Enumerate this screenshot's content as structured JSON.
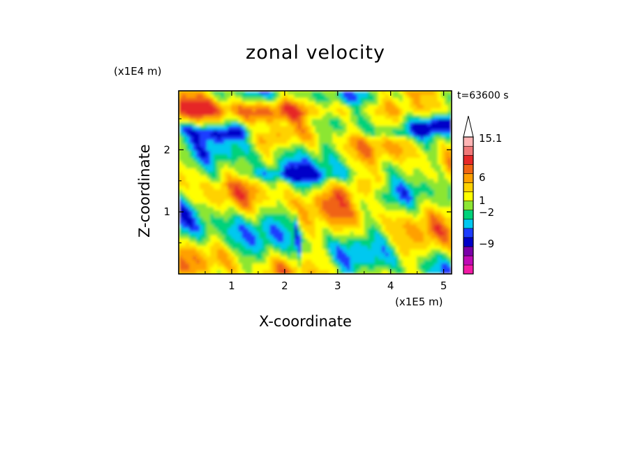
{
  "chart_data": {
    "type": "heatmap",
    "title": "zonal velocity",
    "xlabel": "X-coordinate",
    "ylabel": "Z-coordinate",
    "x_unit": "(x1E5 m)",
    "y_unit": "(x1E4 m)",
    "time_label": "t=63600 s",
    "xlim": [
      0,
      5.15
    ],
    "ylim": [
      0,
      2.95
    ],
    "x_ticks": [
      1,
      2,
      3,
      4,
      5
    ],
    "y_ticks": [
      1,
      2
    ],
    "colorbar": {
      "labels": [
        "15.1",
        "6",
        "1",
        "-2",
        "-9"
      ],
      "colors": [
        "#f21aa6",
        "#bf0ab5",
        "#7a00a8",
        "#0000c8",
        "#1c3cff",
        "#00c8f0",
        "#00d27a",
        "#8ce633",
        "#ffff00",
        "#ffd200",
        "#ffa000",
        "#f06414",
        "#e62828",
        "#f07878",
        "#ffb4b4"
      ],
      "over_arrow_color": "#ffffff"
    }
  }
}
